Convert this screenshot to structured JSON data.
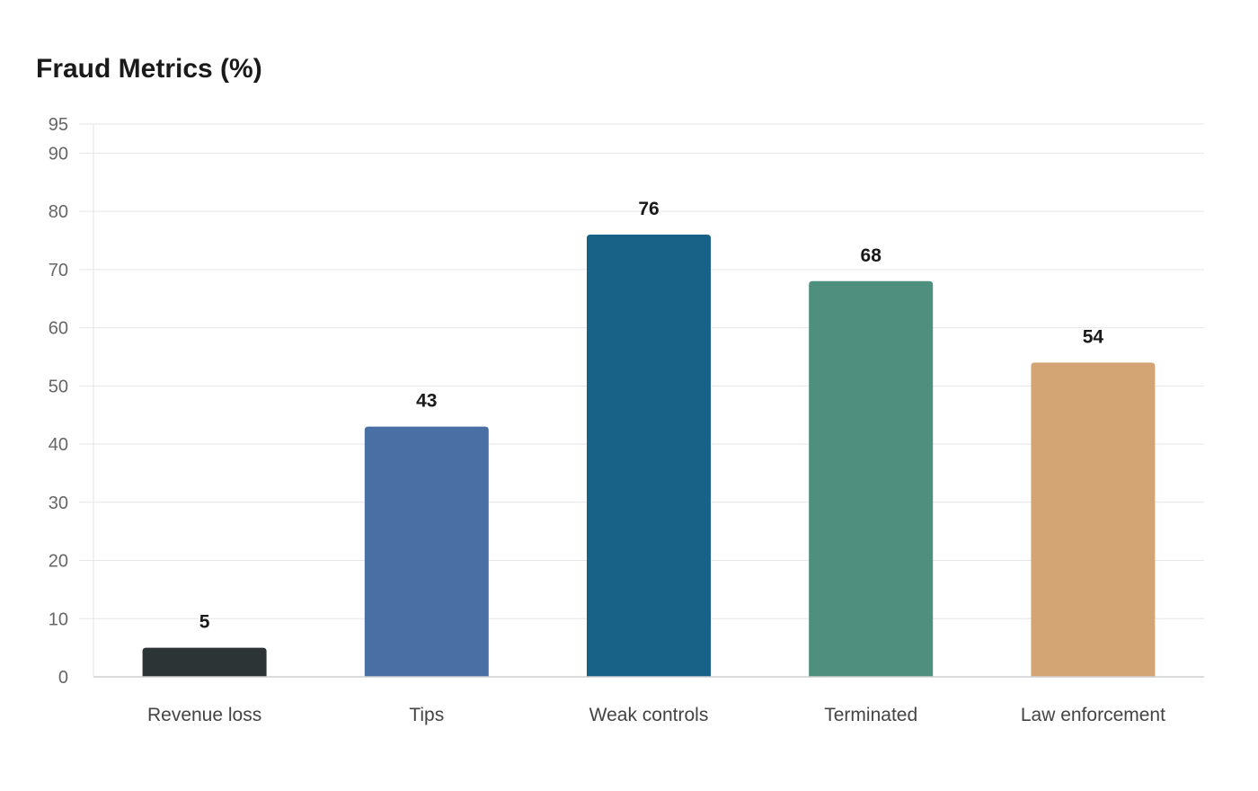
{
  "chart_data": {
    "type": "bar",
    "title": "Fraud Metrics (%)",
    "xlabel": "",
    "ylabel": "",
    "categories": [
      "Revenue loss",
      "Tips",
      "Weak controls",
      "Terminated",
      "Law enforcement"
    ],
    "values": [
      5,
      43,
      76,
      68,
      54
    ],
    "colors": [
      "#2d3436",
      "#4a6fa5",
      "#186287",
      "#4f8f7d",
      "#d4a574"
    ],
    "ylim": [
      0,
      95
    ],
    "yticks": [
      0,
      10,
      20,
      30,
      40,
      50,
      60,
      70,
      80,
      90,
      95
    ],
    "grid": true,
    "data_labels": true
  }
}
